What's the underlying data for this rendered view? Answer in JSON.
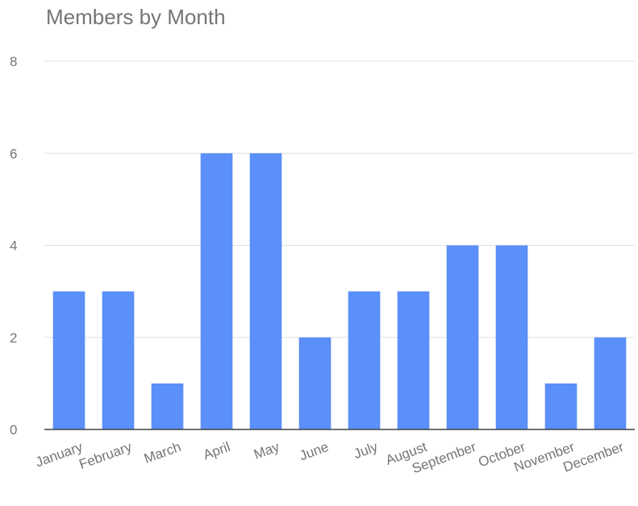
{
  "chart_data": {
    "type": "bar",
    "title": "Members by Month",
    "xlabel": "",
    "ylabel": "",
    "categories": [
      "January",
      "February",
      "March",
      "April",
      "May",
      "June",
      "July",
      "August",
      "September",
      "October",
      "November",
      "December"
    ],
    "values": [
      3,
      3,
      1,
      6,
      6,
      2,
      3,
      3,
      4,
      4,
      1,
      2
    ],
    "ylim": [
      0,
      8
    ],
    "yticks": [
      "0",
      "2",
      "4",
      "6",
      "8"
    ],
    "grid": true,
    "legend": "none",
    "colors": {
      "bar": "#5b8ff9",
      "grid": "#e0e0e0",
      "baseline": "#424242",
      "text": "#757575"
    }
  }
}
